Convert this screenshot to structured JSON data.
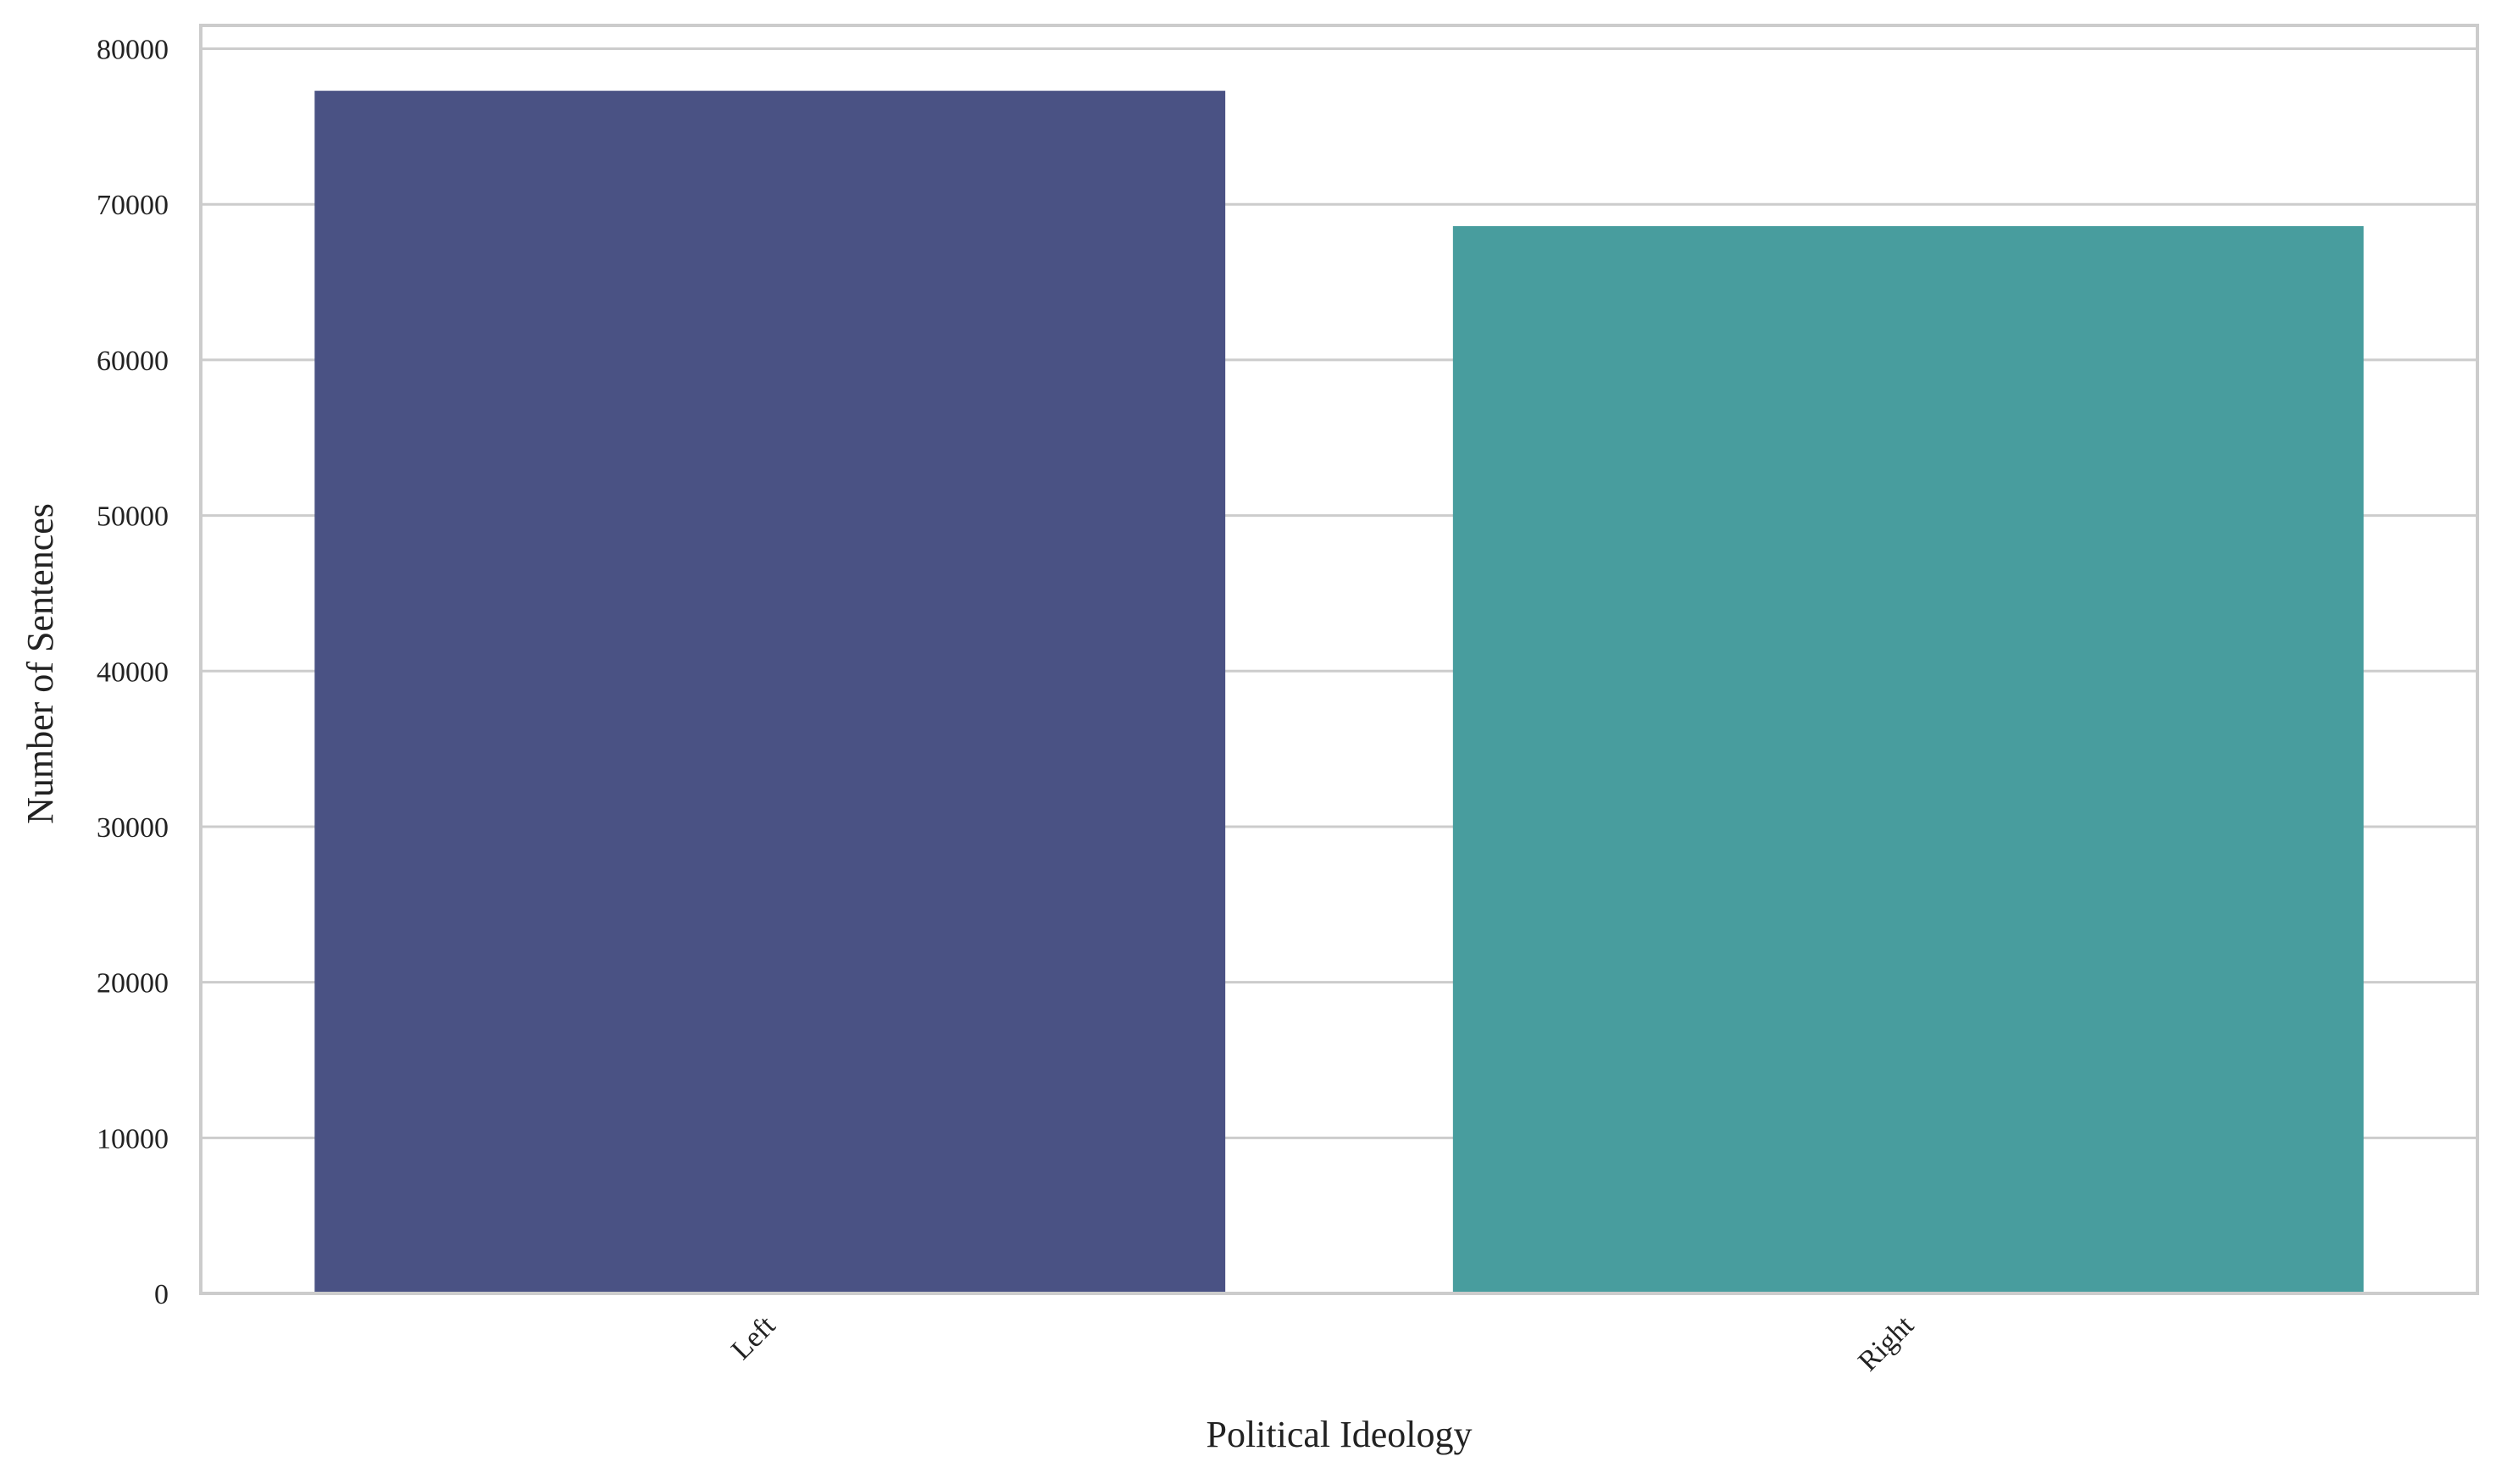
{
  "chart_data": {
    "type": "bar",
    "categories": [
      "Left",
      "Right"
    ],
    "values": [
      77300,
      68600
    ],
    "colors": [
      "#4a5284",
      "#489d9e"
    ],
    "title": "",
    "xlabel": "Political Ideology",
    "ylabel": "Number of Sentences",
    "ylim": [
      0,
      81500
    ],
    "yticks": [
      0,
      10000,
      20000,
      30000,
      40000,
      50000,
      60000,
      70000,
      80000
    ],
    "ytick_labels": [
      "0",
      "10000",
      "20000",
      "30000",
      "40000",
      "50000",
      "60000",
      "70000",
      "80000"
    ],
    "grid": "horizontal",
    "grid_color": "#cccccc",
    "frame_color": "#cccccc",
    "xtick_rotation": 45
  }
}
